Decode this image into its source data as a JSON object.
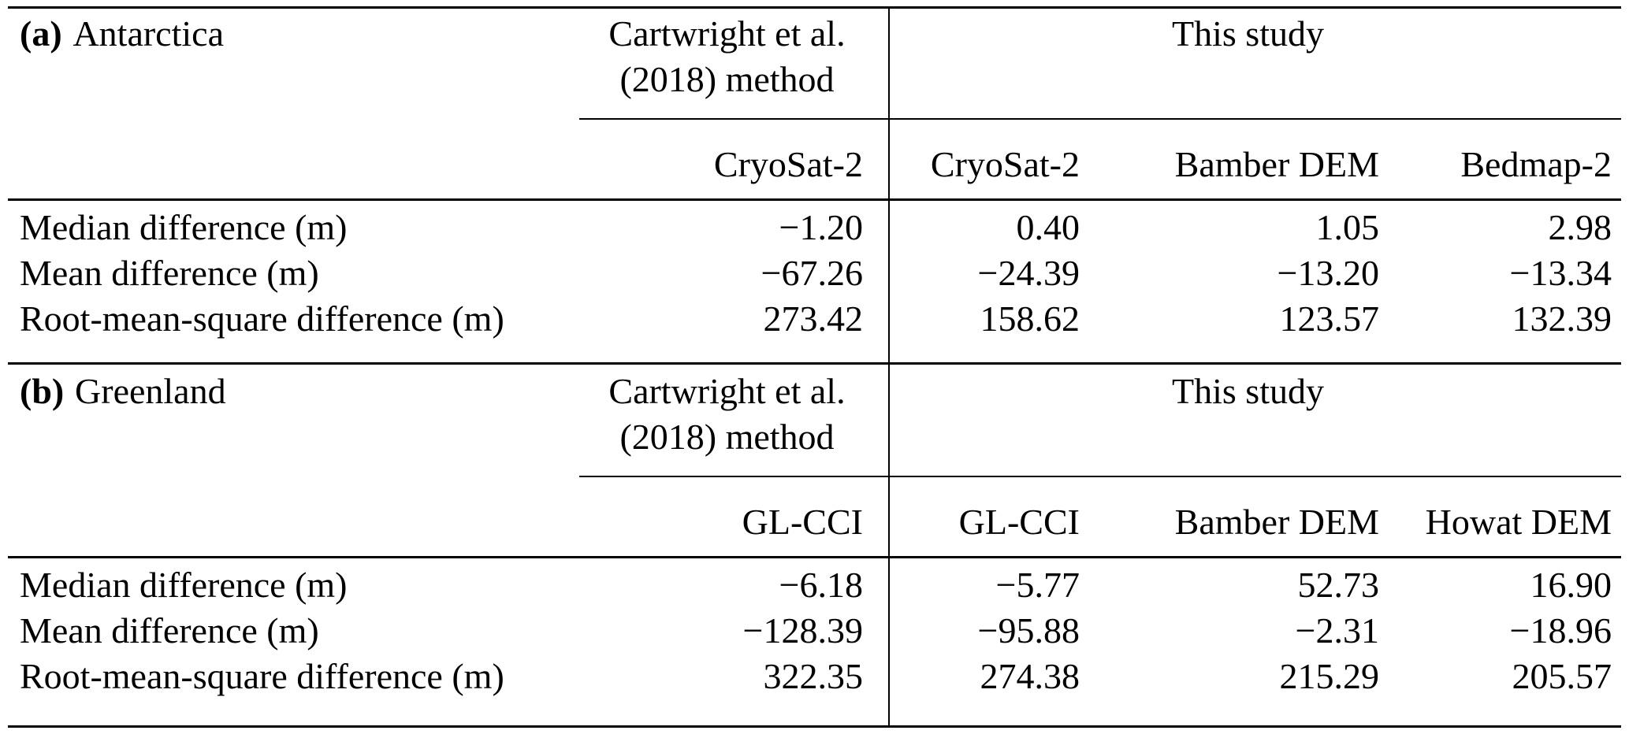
{
  "page": {
    "background_color": "#ffffff",
    "text_color": "#000000",
    "rule_color": "#000000"
  },
  "panels": [
    {
      "letter": "(a)",
      "region": "Antarctica",
      "method_line1": "Cartwright et al.",
      "method_line2": "(2018) method",
      "study_header": "This study",
      "columns": [
        "CryoSat-2",
        "CryoSat-2",
        "Bamber DEM",
        "Bedmap-2"
      ],
      "rows": [
        {
          "label": "Median difference (m)",
          "values": [
            "−1.20",
            "0.40",
            "1.05",
            "2.98"
          ]
        },
        {
          "label": "Mean difference (m)",
          "values": [
            "−67.26",
            "−24.39",
            "−13.20",
            "−13.34"
          ]
        },
        {
          "label": "Root-mean-square difference (m)",
          "values": [
            "273.42",
            "158.62",
            "123.57",
            "132.39"
          ]
        }
      ]
    },
    {
      "letter": "(b)",
      "region": "Greenland",
      "method_line1": "Cartwright et al.",
      "method_line2": "(2018) method",
      "study_header": "This study",
      "columns": [
        "GL-CCI",
        "GL-CCI",
        "Bamber DEM",
        "Howat DEM"
      ],
      "rows": [
        {
          "label": "Median difference (m)",
          "values": [
            "−6.18",
            "−5.77",
            "52.73",
            "16.90"
          ]
        },
        {
          "label": "Mean difference (m)",
          "values": [
            "−128.39",
            "−95.88",
            "−2.31",
            "−18.96"
          ]
        },
        {
          "label": "Root-mean-square difference (m)",
          "values": [
            "322.35",
            "274.38",
            "215.29",
            "205.57"
          ]
        }
      ]
    }
  ],
  "chart_data": [
    {
      "type": "table",
      "title": "(a) Antarctica",
      "row_labels": [
        "Median difference (m)",
        "Mean difference (m)",
        "Root-mean-square difference (m)"
      ],
      "column_groups": [
        "Cartwright et al. (2018) method",
        "This study",
        "This study",
        "This study"
      ],
      "columns": [
        "CryoSat-2",
        "CryoSat-2",
        "Bamber DEM",
        "Bedmap-2"
      ],
      "values": [
        [
          -1.2,
          0.4,
          1.05,
          2.98
        ],
        [
          -67.26,
          -24.39,
          -13.2,
          -13.34
        ],
        [
          273.42,
          158.62,
          123.57,
          132.39
        ]
      ]
    },
    {
      "type": "table",
      "title": "(b) Greenland",
      "row_labels": [
        "Median difference (m)",
        "Mean difference (m)",
        "Root-mean-square difference (m)"
      ],
      "column_groups": [
        "Cartwright et al. (2018) method",
        "This study",
        "This study",
        "This study"
      ],
      "columns": [
        "GL-CCI",
        "GL-CCI",
        "Bamber DEM",
        "Howat DEM"
      ],
      "values": [
        [
          -6.18,
          -5.77,
          52.73,
          16.9
        ],
        [
          -128.39,
          -95.88,
          -2.31,
          -18.96
        ],
        [
          322.35,
          274.38,
          215.29,
          205.57
        ]
      ]
    }
  ]
}
